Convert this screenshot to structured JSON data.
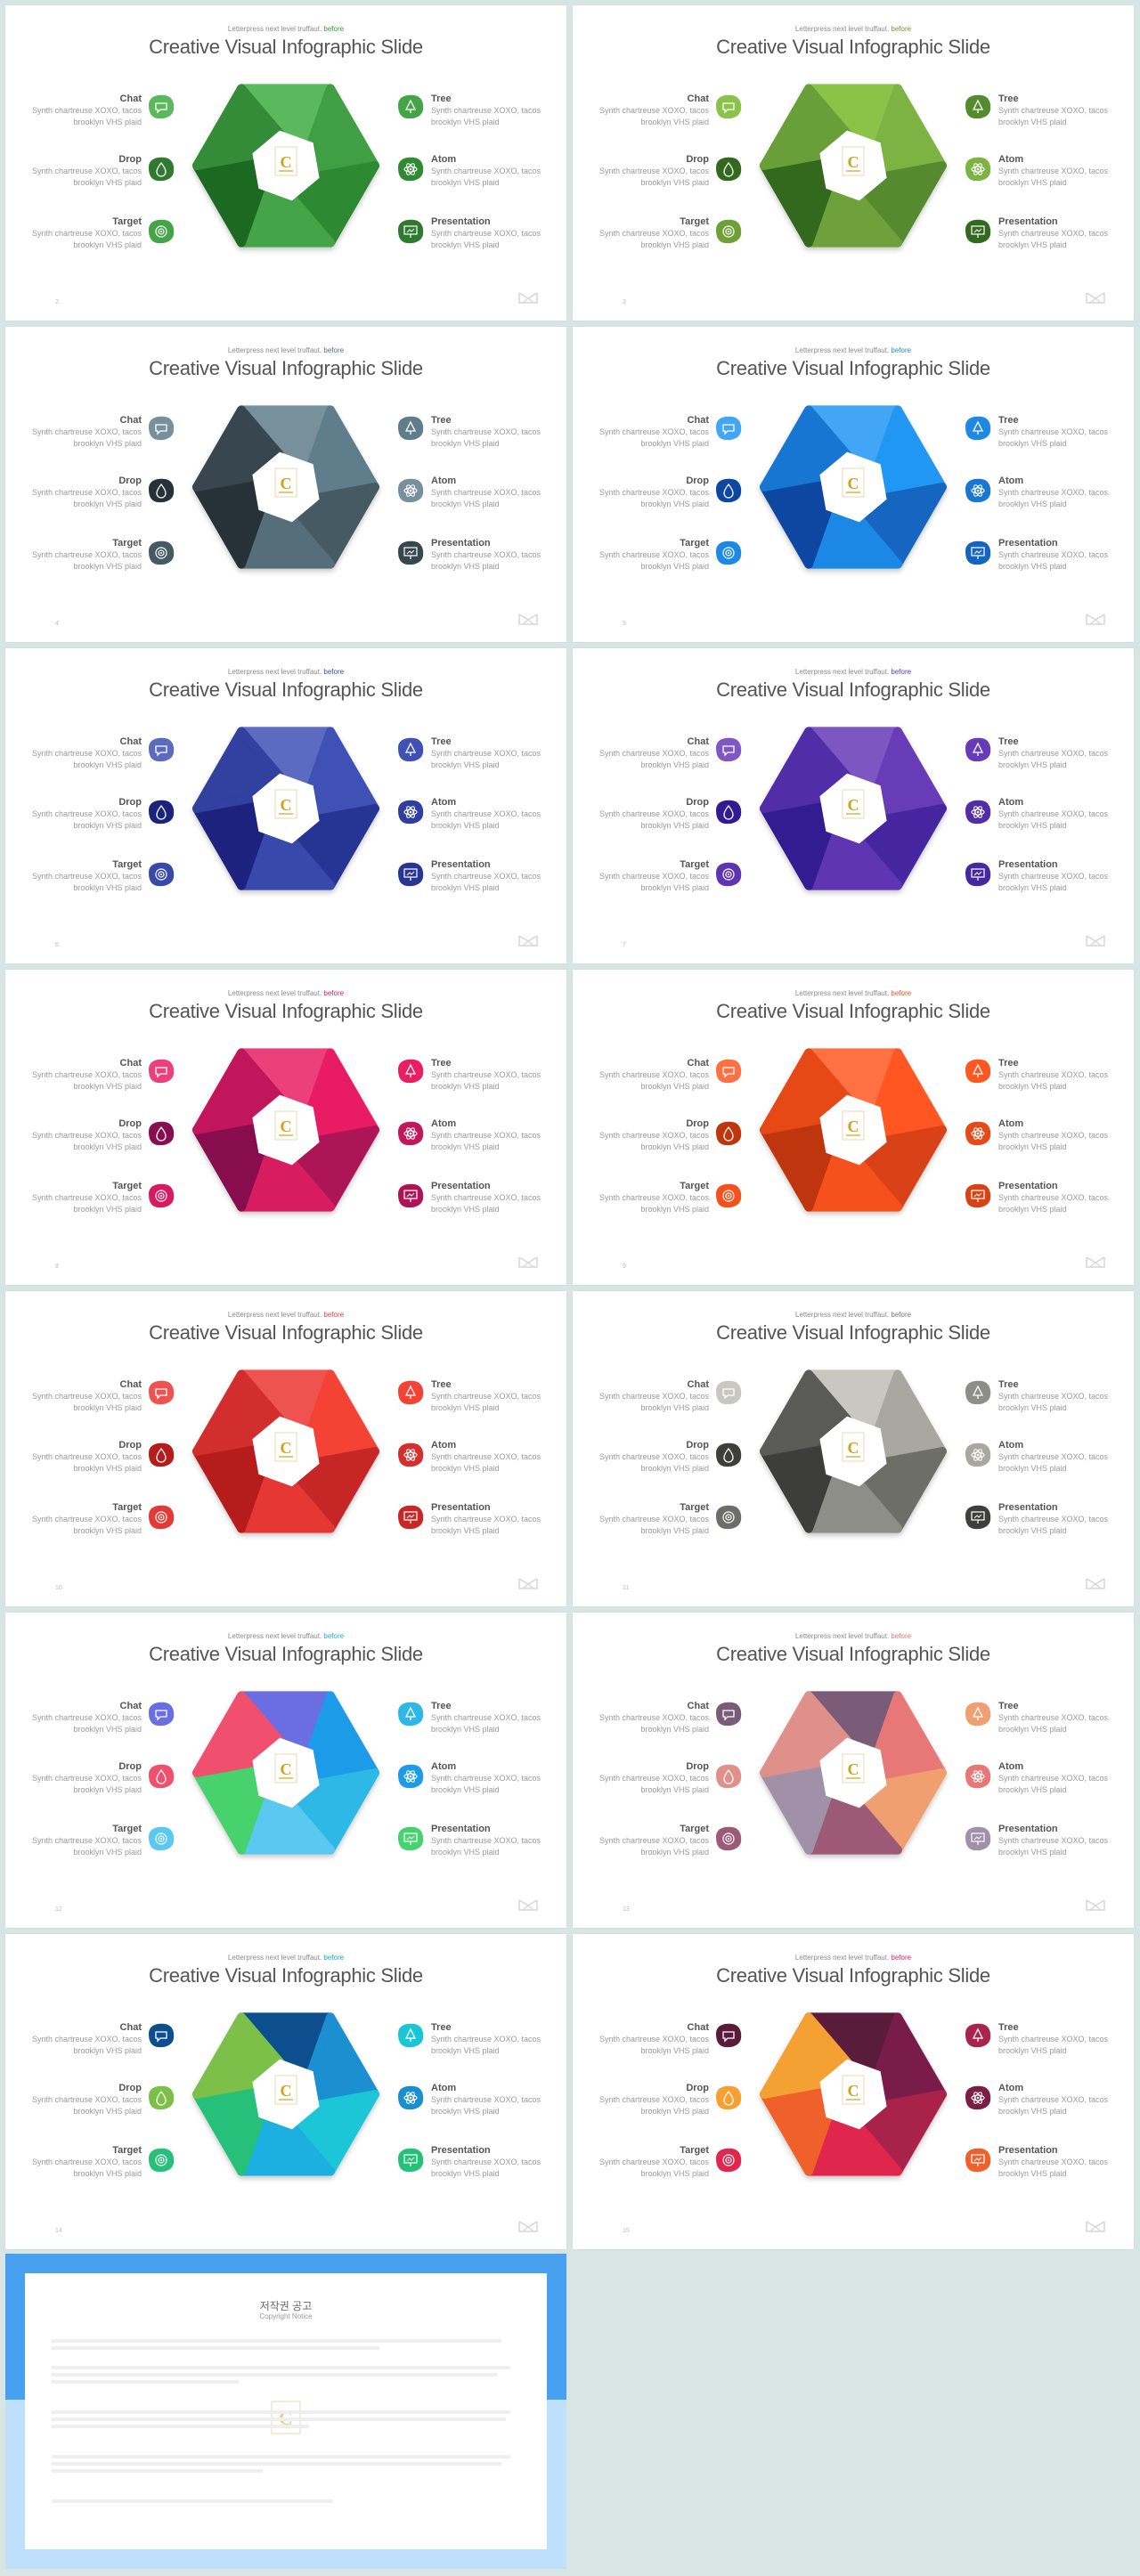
{
  "common": {
    "tagline_prefix": "Letterpress next level truffaut.",
    "tagline_accent": "before",
    "title": "Creative Visual Infographic Slide",
    "items": [
      {
        "heading": "Chat",
        "text": "Synth chartreuse XOXO, tacos brooklyn VHS plaid",
        "icon": "chat-icon",
        "side": "left"
      },
      {
        "heading": "Drop",
        "text": "Synth chartreuse XOXO, tacos brooklyn VHS plaid",
        "icon": "drop-icon",
        "side": "left"
      },
      {
        "heading": "Target",
        "text": "Synth chartreuse XOXO, tacos brooklyn VHS plaid",
        "icon": "target-icon",
        "side": "left"
      },
      {
        "heading": "Tree",
        "text": "Synth chartreuse XOXO, tacos brooklyn VHS plaid",
        "icon": "tree-icon",
        "side": "right"
      },
      {
        "heading": "Atom",
        "text": "Synth chartreuse XOXO, tacos brooklyn VHS plaid",
        "icon": "atom-icon",
        "side": "right"
      },
      {
        "heading": "Presentation",
        "text": "Synth chartreuse XOXO, tacos brooklyn VHS plaid",
        "icon": "presentation-icon",
        "side": "right"
      }
    ]
  },
  "slides": [
    {
      "page": "2",
      "accent": "#3a9a3a",
      "colors": [
        "#5cb85c",
        "#3f9f42",
        "#2f8a33",
        "#44a447",
        "#1f6b22",
        "#358c38"
      ],
      "badges": [
        "#5cb85c",
        "#2f7a30",
        "#44a447",
        "#44a447",
        "#2f8a33",
        "#2f7a30"
      ]
    },
    {
      "page": "3",
      "accent": "#6a9a2a",
      "colors": [
        "#8bc34a",
        "#7cb342",
        "#558b2f",
        "#6ea03a",
        "#33691e",
        "#689f38"
      ],
      "badges": [
        "#8bc34a",
        "#33691e",
        "#6ea03a",
        "#558b2f",
        "#7cb342",
        "#33691e"
      ]
    },
    {
      "page": "4",
      "accent": "#546e7a",
      "colors": [
        "#78909c",
        "#607d8b",
        "#455a64",
        "#546e7a",
        "#263238",
        "#37474f"
      ],
      "badges": [
        "#78909c",
        "#263238",
        "#455a64",
        "#607d8b",
        "#78909c",
        "#37474f"
      ]
    },
    {
      "page": "5",
      "accent": "#1e88e5",
      "colors": [
        "#42a5f5",
        "#2196f3",
        "#1565c0",
        "#1e88e5",
        "#0d47a1",
        "#1976d2"
      ],
      "badges": [
        "#42a5f5",
        "#0d47a1",
        "#1e88e5",
        "#1e88e5",
        "#1976d2",
        "#1565c0"
      ]
    },
    {
      "page": "6",
      "accent": "#3949ab",
      "colors": [
        "#5c6bc0",
        "#3f51b5",
        "#283593",
        "#3949ab",
        "#1a237e",
        "#303f9f"
      ],
      "badges": [
        "#5c6bc0",
        "#1a237e",
        "#3949ab",
        "#3f51b5",
        "#303f9f",
        "#283593"
      ]
    },
    {
      "page": "7",
      "accent": "#5e35b1",
      "colors": [
        "#7e57c2",
        "#673ab7",
        "#4527a0",
        "#5e35b1",
        "#311b92",
        "#512da8"
      ],
      "badges": [
        "#7e57c2",
        "#311b92",
        "#5e35b1",
        "#673ab7",
        "#512da8",
        "#4527a0"
      ]
    },
    {
      "page": "8",
      "accent": "#d81b60",
      "colors": [
        "#ec407a",
        "#e91e63",
        "#ad1457",
        "#d81b60",
        "#880e4f",
        "#c2185b"
      ],
      "badges": [
        "#ec407a",
        "#880e4f",
        "#d81b60",
        "#e91e63",
        "#c2185b",
        "#ad1457"
      ]
    },
    {
      "page": "9",
      "accent": "#f4511e",
      "colors": [
        "#ff7043",
        "#ff5722",
        "#d84315",
        "#f4511e",
        "#bf360c",
        "#e64a19"
      ],
      "badges": [
        "#ff7043",
        "#bf360c",
        "#f4511e",
        "#ff5722",
        "#e64a19",
        "#d84315"
      ]
    },
    {
      "page": "10",
      "accent": "#e53935",
      "colors": [
        "#ef5350",
        "#f44336",
        "#c62828",
        "#e53935",
        "#b71c1c",
        "#d32f2f"
      ],
      "badges": [
        "#ef5350",
        "#b71c1c",
        "#e53935",
        "#f44336",
        "#d32f2f",
        "#c62828"
      ]
    },
    {
      "page": "11",
      "accent": "#757575",
      "colors": [
        "#c8c8c0",
        "#a8a8a0",
        "#6e6e68",
        "#8e8e88",
        "#3e3e3a",
        "#5a5a56"
      ],
      "badges": [
        "#c8c8c0",
        "#3e3e3a",
        "#6e6e68",
        "#8e8e88",
        "#a8a8a0",
        "#3e3e3a"
      ]
    },
    {
      "page": "12",
      "accent": "#2aa7ea",
      "colors": [
        "#6a6ee0",
        "#1e9be8",
        "#2fb8e6",
        "#5ac8f0",
        "#46d26e",
        "#f0506e"
      ],
      "badges": [
        "#6a6ee0",
        "#f0506e",
        "#5ac8f0",
        "#2fb8e6",
        "#1e9be8",
        "#46d26e"
      ]
    },
    {
      "page": "13",
      "accent": "#e57373",
      "colors": [
        "#7a5c78",
        "#e87878",
        "#f0a070",
        "#9c5a78",
        "#a090a8",
        "#e0908a"
      ],
      "badges": [
        "#7a5c78",
        "#e0908a",
        "#9c5a78",
        "#f0a070",
        "#e87878",
        "#a090a8"
      ]
    },
    {
      "page": "14",
      "accent": "#1aa3d0",
      "colors": [
        "#0d4f8e",
        "#1a8fd0",
        "#1ac6d6",
        "#1ab0e0",
        "#27c07a",
        "#7cc04a"
      ],
      "badges": [
        "#0d4f8e",
        "#7cc04a",
        "#27c07a",
        "#1ac6d6",
        "#1a8fd0",
        "#27c07a"
      ]
    },
    {
      "page": "15",
      "accent": "#e91e63",
      "colors": [
        "#5a1a3a",
        "#7a1e48",
        "#a8244a",
        "#e0284e",
        "#f0602a",
        "#f5a030"
      ],
      "badges": [
        "#5a1a3a",
        "#f5a030",
        "#e0284e",
        "#a8244a",
        "#7a1e48",
        "#f0602a"
      ]
    }
  ],
  "copyright": {
    "title": "저작권 공고",
    "subtitle": "Copyright Notice"
  }
}
